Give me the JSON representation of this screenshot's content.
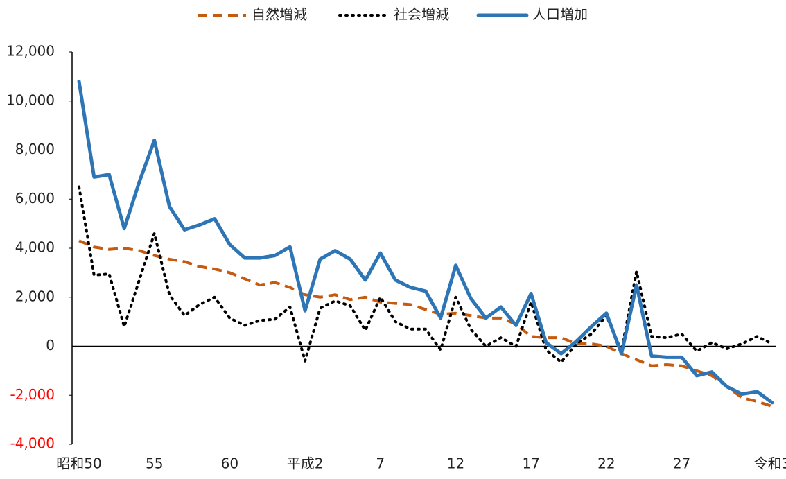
{
  "chart_data": {
    "type": "line",
    "categories": [
      "昭和50",
      null,
      null,
      null,
      null,
      "55",
      null,
      null,
      null,
      null,
      "60",
      null,
      null,
      null,
      null,
      "平成2",
      null,
      null,
      null,
      null,
      "7",
      null,
      null,
      null,
      null,
      "12",
      null,
      null,
      null,
      null,
      "17",
      null,
      null,
      null,
      null,
      "22",
      null,
      null,
      null,
      null,
      "27",
      null,
      null,
      null,
      null,
      null,
      "令和3"
    ],
    "series": [
      {
        "name": "自然増減",
        "color": "#c55a11",
        "style": "dashed",
        "values": [
          4300,
          4050,
          3950,
          4000,
          3900,
          3700,
          3550,
          3450,
          3250,
          3150,
          3000,
          2750,
          2500,
          2600,
          2400,
          2100,
          2000,
          2100,
          1900,
          2000,
          1800,
          1750,
          1700,
          1500,
          1300,
          1350,
          1250,
          1150,
          1150,
          900,
          400,
          350,
          350,
          100,
          100,
          0,
          -300,
          -550,
          -800,
          -750,
          -800,
          -1000,
          -1200,
          -1650,
          -2100,
          -2250,
          -2450
        ]
      },
      {
        "name": "社会増減",
        "color": "#000000",
        "style": "dotted",
        "values": [
          6500,
          2900,
          2950,
          800,
          2700,
          4600,
          2100,
          1250,
          1700,
          2000,
          1150,
          850,
          1050,
          1100,
          1600,
          -600,
          1550,
          1850,
          1650,
          650,
          2000,
          1000,
          700,
          700,
          -150,
          2000,
          700,
          0,
          350,
          0,
          1800,
          -150,
          -650,
          100,
          500,
          1250,
          -200,
          3050,
          400,
          350,
          500,
          -200,
          150,
          -100,
          100,
          400,
          100
        ]
      },
      {
        "name": "人口増加",
        "color": "#2e75b6",
        "style": "solid",
        "values": [
          10800,
          6900,
          7000,
          4800,
          6700,
          8400,
          5700,
          4750,
          4950,
          5200,
          4150,
          3600,
          3600,
          3700,
          4050,
          1450,
          3550,
          3900,
          3550,
          2700,
          3800,
          2700,
          2400,
          2250,
          1150,
          3300,
          1950,
          1150,
          1600,
          850,
          2150,
          150,
          -300,
          200,
          800,
          1350,
          -300,
          2500,
          -400,
          -450,
          -450,
          -1200,
          -1050,
          -1650,
          -1950,
          -1850,
          -2300
        ]
      }
    ],
    "ylim": [
      -4000,
      12000
    ],
    "yticks": [
      {
        "value": -4000,
        "label": "-4,000"
      },
      {
        "value": -2000,
        "label": "-2,000"
      },
      0,
      {
        "value": 2000,
        "label": "2,000"
      },
      {
        "value": 4000,
        "label": "4,000"
      },
      {
        "value": 6000,
        "label": "6,000"
      },
      {
        "value": 8000,
        "label": "8,000"
      },
      {
        "value": 10000,
        "label": "10,000"
      },
      {
        "value": 12000,
        "label": "12,000"
      }
    ],
    "negative_tick_color": "#ff0000",
    "legend": "top"
  }
}
